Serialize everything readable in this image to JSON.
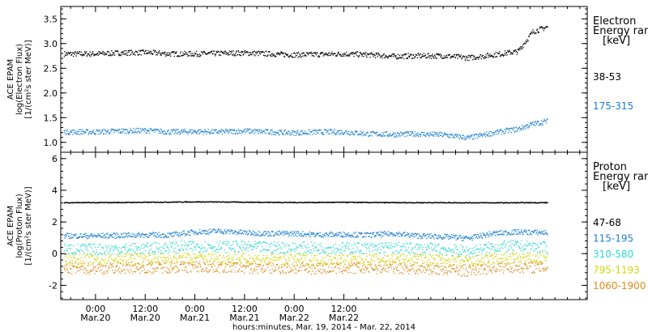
{
  "chart_data": [
    {
      "type": "scatter",
      "title": "",
      "ylabel_lines": [
        "ACE EPAM",
        "log(Electron Flux)",
        "[1/(cm²s ster MeV)]"
      ],
      "yticks": [
        1.0,
        1.5,
        2.0,
        2.5,
        3.0,
        3.5
      ],
      "ytick_labels": [
        "1.0",
        "1.5",
        "2.0",
        "2.5",
        "3.0",
        "3.5"
      ],
      "ylim": [
        0.8,
        3.75
      ],
      "legend_title_lines": [
        "Electron",
        "Energy ranges",
        "[keV]"
      ],
      "series": [
        {
          "name": "38-53",
          "color": "#000000",
          "x": [
            0,
            0.25,
            0.5,
            0.75,
            1.0,
            1.25,
            1.5,
            1.75,
            2.0,
            2.25,
            2.5,
            2.75,
            3.0,
            3.25,
            3.5,
            3.75,
            4.0,
            4.25,
            4.4,
            4.55
          ],
          "y": [
            2.8,
            2.82,
            2.83,
            2.8,
            2.8,
            2.81,
            2.82,
            2.8,
            2.78,
            2.79,
            2.8,
            2.78,
            2.75,
            2.76,
            2.76,
            2.72,
            2.78,
            2.85,
            3.25,
            3.35
          ]
        },
        {
          "name": "175-315",
          "color": "#1a7fd4",
          "x": [
            0,
            0.25,
            0.5,
            0.75,
            1.0,
            1.25,
            1.5,
            1.75,
            2.0,
            2.25,
            2.5,
            2.75,
            3.0,
            3.25,
            3.5,
            3.75,
            4.0,
            4.25,
            4.4,
            4.55
          ],
          "y": [
            1.22,
            1.24,
            1.25,
            1.22,
            1.23,
            1.22,
            1.24,
            1.22,
            1.2,
            1.22,
            1.22,
            1.18,
            1.17,
            1.18,
            1.16,
            1.1,
            1.2,
            1.28,
            1.38,
            1.44
          ]
        }
      ]
    },
    {
      "type": "scatter",
      "title": "",
      "ylabel_lines": [
        "ACE EPAM",
        "log(Proton Flux)",
        "[1/(cm²s ster MeV)]"
      ],
      "yticks": [
        -2,
        0,
        2,
        4,
        6
      ],
      "ytick_labels": [
        "-2",
        "0",
        "2",
        "4",
        "6"
      ],
      "ylim": [
        -2.9,
        6.4
      ],
      "legend_title_lines": [
        "Proton",
        "Energy ranges",
        "[keV]"
      ],
      "series": [
        {
          "name": "47-68",
          "color": "#000000",
          "x": [
            0,
            0.5,
            1.0,
            1.5,
            2.0,
            2.5,
            3.0,
            3.5,
            4.0,
            4.55
          ],
          "y": [
            3.25,
            3.27,
            3.3,
            3.28,
            3.26,
            3.27,
            3.25,
            3.25,
            3.24,
            3.25
          ]
        },
        {
          "name": "115-195",
          "color": "#1a7fd4",
          "x": [
            0,
            0.25,
            0.5,
            0.75,
            1.0,
            1.25,
            1.5,
            1.75,
            2.0,
            2.25,
            2.5,
            2.75,
            3.0,
            3.25,
            3.5,
            3.75,
            4.0,
            4.25,
            4.55
          ],
          "y": [
            1.15,
            1.18,
            1.22,
            1.2,
            1.4,
            1.45,
            1.35,
            1.3,
            1.3,
            1.22,
            1.25,
            1.2,
            1.3,
            1.15,
            1.1,
            1.0,
            1.3,
            1.4,
            1.35
          ]
        },
        {
          "name": "310-580",
          "color": "#2fd8d0",
          "x": [
            0,
            0.5,
            1.0,
            1.5,
            2.0,
            2.5,
            3.0,
            3.5,
            3.75,
            4.0,
            4.25,
            4.55
          ],
          "y": [
            0.3,
            0.35,
            0.5,
            0.45,
            0.4,
            0.38,
            0.4,
            0.3,
            0.15,
            0.45,
            0.5,
            0.4
          ]
        },
        {
          "name": "795-1193",
          "color": "#d4d40a",
          "x": [
            0,
            0.5,
            1.0,
            1.5,
            2.0,
            2.5,
            3.0,
            3.5,
            3.75,
            4.0,
            4.25,
            4.55
          ],
          "y": [
            -0.35,
            -0.3,
            -0.25,
            -0.3,
            -0.35,
            -0.35,
            -0.3,
            -0.4,
            -0.5,
            -0.3,
            -0.25,
            -0.3
          ]
        },
        {
          "name": "1060-1900",
          "color": "#e08a1a",
          "x": [
            0,
            0.5,
            1.0,
            1.5,
            2.0,
            2.5,
            3.0,
            3.5,
            3.75,
            4.0,
            4.25,
            4.55
          ],
          "y": [
            -0.9,
            -0.85,
            -0.8,
            -0.85,
            -0.9,
            -0.9,
            -0.85,
            -0.95,
            -1.05,
            -0.85,
            -0.8,
            -0.85
          ]
        }
      ]
    }
  ],
  "x_axis": {
    "xlim": [
      -0.35,
      4.95
    ],
    "major_ticks": [
      {
        "x": 0.0,
        "time": "0:00",
        "date": "Mar.20"
      },
      {
        "x": 0.5,
        "time": "12:00",
        "date": "Mar.20"
      },
      {
        "x": 1.0,
        "time": "0:00",
        "date": "Mar.21"
      },
      {
        "x": 1.5,
        "time": "12:00",
        "date": "Mar.21"
      },
      {
        "x": 2.0,
        "time": "0:00",
        "date": "Mar.22"
      },
      {
        "x": 2.5,
        "time": "12:00",
        "date": "Mar.22"
      }
    ],
    "label": "hours:minutes, Mar. 19, 2014 - Mar. 22, 2014"
  }
}
